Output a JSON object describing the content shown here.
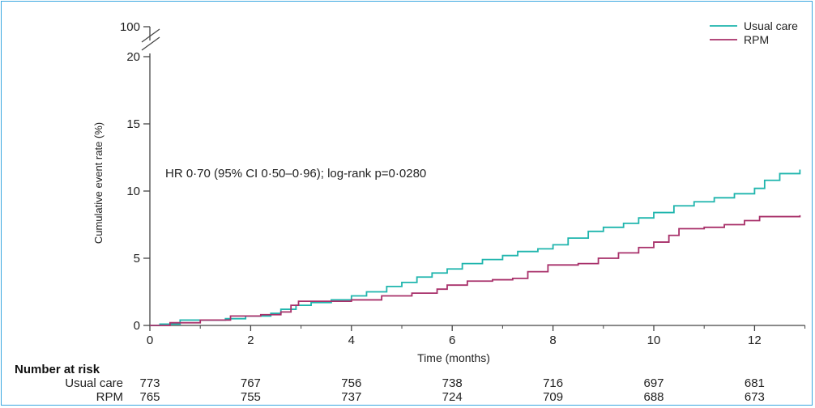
{
  "chart_data": {
    "type": "line",
    "title": "",
    "xlabel": "Time (months)",
    "ylabel": "Cumulative event rate (%)",
    "xlim": [
      0,
      13
    ],
    "ylim": [
      0,
      20
    ],
    "y_break_top": 100,
    "x_ticks": [
      0,
      2,
      4,
      6,
      8,
      10,
      12
    ],
    "y_ticks": [
      0,
      5,
      10,
      15,
      20
    ],
    "grid": false,
    "legend_position": "top-right",
    "annotation": "HR 0·70 (95% CI 0·50–0·96); log-rank p=0·0280",
    "series": [
      {
        "name": "Usual care",
        "color": "#1fb5ad",
        "points": [
          [
            0,
            0
          ],
          [
            0.2,
            0.1
          ],
          [
            0.6,
            0.4
          ],
          [
            1.5,
            0.5
          ],
          [
            1.9,
            0.7
          ],
          [
            2.4,
            0.9
          ],
          [
            2.6,
            1.2
          ],
          [
            2.9,
            1.5
          ],
          [
            3.2,
            1.7
          ],
          [
            3.6,
            1.9
          ],
          [
            4.0,
            2.2
          ],
          [
            4.3,
            2.5
          ],
          [
            4.7,
            2.9
          ],
          [
            5.0,
            3.2
          ],
          [
            5.3,
            3.6
          ],
          [
            5.6,
            3.9
          ],
          [
            5.9,
            4.2
          ],
          [
            6.2,
            4.6
          ],
          [
            6.6,
            4.9
          ],
          [
            7.0,
            5.2
          ],
          [
            7.3,
            5.5
          ],
          [
            7.7,
            5.7
          ],
          [
            8.0,
            6.0
          ],
          [
            8.3,
            6.5
          ],
          [
            8.7,
            7.0
          ],
          [
            9.0,
            7.3
          ],
          [
            9.4,
            7.6
          ],
          [
            9.7,
            8.0
          ],
          [
            10.0,
            8.4
          ],
          [
            10.4,
            8.9
          ],
          [
            10.8,
            9.2
          ],
          [
            11.2,
            9.5
          ],
          [
            11.6,
            9.8
          ],
          [
            12.0,
            10.2
          ],
          [
            12.2,
            10.8
          ],
          [
            12.5,
            11.3
          ],
          [
            12.9,
            11.6
          ]
        ]
      },
      {
        "name": "RPM",
        "color": "#a8306a",
        "points": [
          [
            0,
            0
          ],
          [
            0.4,
            0.2
          ],
          [
            1.0,
            0.4
          ],
          [
            1.6,
            0.7
          ],
          [
            2.2,
            0.8
          ],
          [
            2.6,
            1.0
          ],
          [
            2.8,
            1.5
          ],
          [
            2.95,
            1.8
          ],
          [
            3.5,
            1.8
          ],
          [
            4.0,
            1.9
          ],
          [
            4.6,
            2.2
          ],
          [
            5.2,
            2.4
          ],
          [
            5.7,
            2.7
          ],
          [
            5.9,
            3.0
          ],
          [
            6.3,
            3.3
          ],
          [
            6.8,
            3.4
          ],
          [
            7.2,
            3.5
          ],
          [
            7.5,
            4.0
          ],
          [
            7.9,
            4.5
          ],
          [
            8.5,
            4.6
          ],
          [
            8.9,
            5.0
          ],
          [
            9.3,
            5.4
          ],
          [
            9.7,
            5.8
          ],
          [
            10.0,
            6.2
          ],
          [
            10.3,
            6.7
          ],
          [
            10.5,
            7.2
          ],
          [
            11.0,
            7.3
          ],
          [
            11.4,
            7.5
          ],
          [
            11.8,
            7.8
          ],
          [
            12.1,
            8.1
          ],
          [
            12.9,
            8.2
          ]
        ]
      }
    ],
    "risk_table": {
      "title": "Number at risk",
      "times": [
        0,
        2,
        4,
        6,
        8,
        10,
        12
      ],
      "rows": [
        {
          "label": "Usual care",
          "values": [
            "773",
            "767",
            "756",
            "738",
            "716",
            "697",
            "681"
          ]
        },
        {
          "label": "RPM",
          "values": [
            "765",
            "755",
            "737",
            "724",
            "709",
            "688",
            "673"
          ]
        }
      ]
    }
  }
}
